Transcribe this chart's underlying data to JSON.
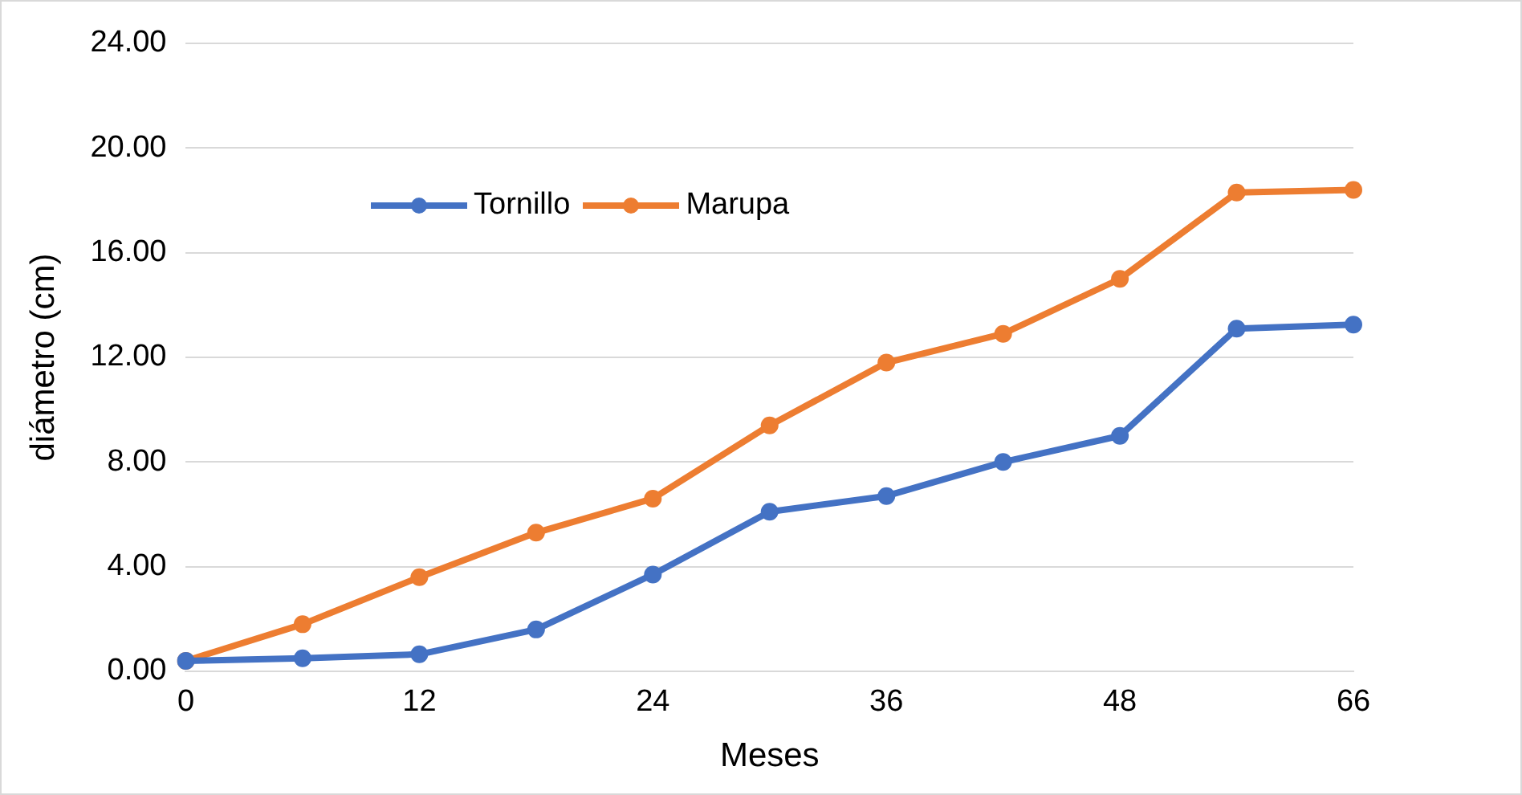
{
  "chart_data": {
    "type": "line",
    "xlabel": "Meses",
    "ylabel": "diámetro (cm)",
    "categories": [
      "0",
      null,
      "12",
      null,
      "24",
      null,
      "36",
      null,
      "48",
      null,
      "66"
    ],
    "series": [
      {
        "name": "Tornillo",
        "color": "#4472c4",
        "values": [
          0.4,
          0.5,
          0.65,
          1.6,
          3.7,
          6.1,
          6.7,
          8.0,
          9.0,
          13.1,
          13.25
        ]
      },
      {
        "name": "Marupa",
        "color": "#ed7d31",
        "values": [
          0.4,
          1.8,
          3.6,
          5.3,
          6.6,
          9.4,
          11.8,
          12.9,
          15.0,
          18.3,
          18.4
        ]
      }
    ],
    "ylim": [
      0,
      24
    ],
    "yticks": [
      {
        "value": 0,
        "label": "0.00"
      },
      {
        "value": 4,
        "label": "4.00"
      },
      {
        "value": 8,
        "label": "8.00"
      },
      {
        "value": 12,
        "label": "12.00"
      },
      {
        "value": 16,
        "label": "16.00"
      },
      {
        "value": 20,
        "label": "20.00"
      },
      {
        "value": 24,
        "label": "24.00"
      }
    ],
    "grid": "y",
    "legend": "top left",
    "marker": "circle",
    "line_style": "solid"
  }
}
